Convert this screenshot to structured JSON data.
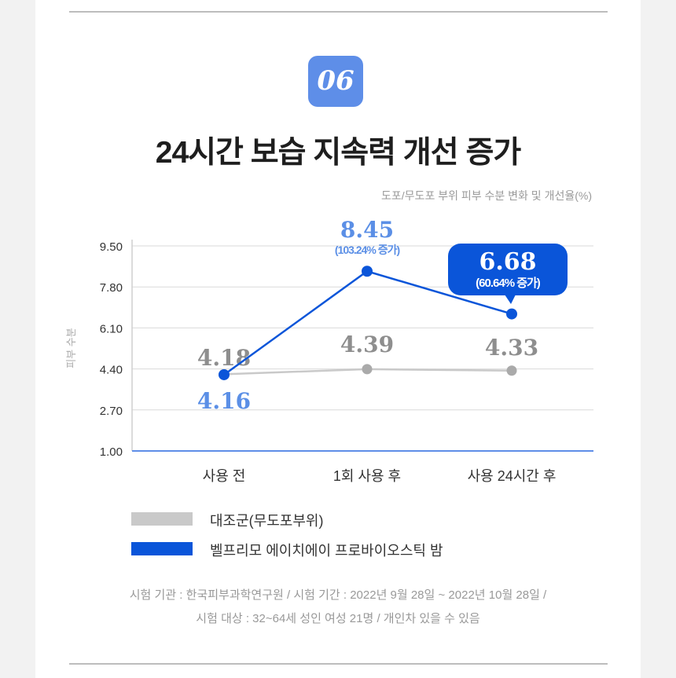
{
  "badge": "06",
  "title": "24시간 보습 지속력 개선 증가",
  "colors": {
    "blue": "#0a55d9",
    "blue_label": "#5b8fe6",
    "gray": "#c9c9c9",
    "gray_label": "#8e8e8e",
    "badge": "#5e8ee8"
  },
  "chart_data": {
    "type": "line",
    "title": "도포/무도포 부위 피부 수분 변화 및 개선율(%)",
    "ylabel": "피부 수분",
    "xlabel": "",
    "categories": [
      "사용 전",
      "1회 사용 후",
      "사용 24시간 후"
    ],
    "ylim": [
      1.0,
      9.5
    ],
    "yticks": [
      "9.50",
      "7.80",
      "6.10",
      "4.40",
      "2.70",
      "1.00"
    ],
    "grid": true,
    "legend_position": "bottom",
    "series": [
      {
        "name": "대조군(무도포부위)",
        "values": [
          4.18,
          4.39,
          4.33
        ],
        "labels": [
          "4.18",
          "4.39",
          "4.33"
        ]
      },
      {
        "name": "벨프리모 에이치에이 프로바이오스틱 밤",
        "values": [
          4.16,
          8.45,
          6.68
        ],
        "labels": [
          "4.16",
          "8.45",
          "6.68"
        ],
        "annotations": [
          "",
          "(103.24% 증가)",
          "(60.64% 증가)"
        ]
      }
    ]
  },
  "notes": [
    "시험 기관 : 한국피부과학연구원 / 시험 기간 : 2022년 9월 28일 ~ 2022년 10월 28일 /",
    "시험 대상 : 32~64세 성인 여성 21명 / 개인차 있을 수 있음"
  ]
}
